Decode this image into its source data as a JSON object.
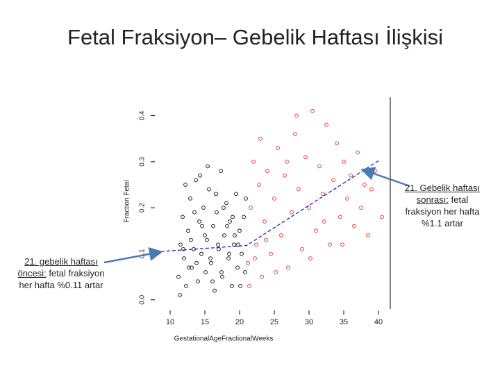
{
  "slide": {
    "title": "Fetal Fraksiyon– Gebelik Haftası İlişkisi"
  },
  "chart_data": {
    "type": "scatter",
    "x_label": "GestationalAgeFractionalWeeks",
    "y_label": "Fraction Fetal",
    "xlim": [
      8.7,
      41.7
    ],
    "ylim": [
      -0.02,
      0.44
    ],
    "xticks": [
      10,
      15,
      20,
      25,
      30,
      35,
      40
    ],
    "yticks": [
      {
        "value": 0,
        "label": "0.0"
      },
      0.1,
      0.2,
      0.3,
      0.4
    ],
    "series": [
      {
        "type": "scatter",
        "color": "#000000",
        "x": [
          11.2,
          11.5,
          11.8,
          12.0,
          12.3,
          12.6,
          12.9,
          13.1,
          13.4,
          13.7,
          14.0,
          14.2,
          14.5,
          14.8,
          15.1,
          15.3,
          15.6,
          15.9,
          16.2,
          16.4,
          16.7,
          17.0,
          17.3,
          17.5,
          17.8,
          18.1,
          18.4,
          18.6,
          18.9,
          19.2,
          19.5,
          19.7,
          20.0,
          20.3,
          20.6,
          20.8,
          11.4,
          12.2,
          13.0,
          13.8,
          14.6,
          15.4,
          16.1,
          16.9,
          17.7,
          18.5,
          19.3,
          20.1,
          20.9,
          11.9,
          12.7,
          13.5,
          14.3,
          15.0,
          15.8,
          16.6,
          17.4,
          18.2,
          19.0,
          19.8
        ],
        "values": [
          0.05,
          0.12,
          0.18,
          0.09,
          0.03,
          0.15,
          0.22,
          0.07,
          0.11,
          0.26,
          0.04,
          0.17,
          0.1,
          0.2,
          0.06,
          0.13,
          0.24,
          0.08,
          0.16,
          0.02,
          0.19,
          0.11,
          0.28,
          0.05,
          0.14,
          0.21,
          0.09,
          0.17,
          0.03,
          0.12,
          0.23,
          0.07,
          0.15,
          0.1,
          0.18,
          0.06,
          0.01,
          0.25,
          0.13,
          0.08,
          0.16,
          0.29,
          0.04,
          0.12,
          0.2,
          0.1,
          0.14,
          0.03,
          0.22,
          0.11,
          0.07,
          0.19,
          0.27,
          0.14,
          0.09,
          0.23,
          0.06,
          0.16,
          0.18,
          0.12
        ]
      },
      {
        "type": "scatter",
        "color": "#e8231b",
        "x": [
          21.2,
          21.6,
          22.0,
          22.4,
          22.8,
          23.2,
          23.6,
          24.0,
          24.5,
          25.0,
          25.5,
          26.0,
          26.5,
          27.0,
          27.5,
          28.0,
          28.5,
          29.0,
          29.5,
          30.0,
          30.5,
          31.0,
          31.5,
          32.0,
          32.5,
          33.0,
          33.5,
          34.0,
          34.5,
          35.0,
          35.5,
          36.0,
          36.5,
          37.0,
          37.5,
          38.0,
          38.5,
          39.0,
          39.5,
          40.5,
          21.4,
          22.2,
          23.0,
          23.8,
          25.2,
          26.8,
          28.2,
          30.2,
          32.2,
          34.8
        ],
        "values": [
          0.08,
          0.2,
          0.3,
          0.12,
          0.25,
          0.05,
          0.17,
          0.28,
          0.1,
          0.22,
          0.33,
          0.14,
          0.27,
          0.07,
          0.19,
          0.36,
          0.24,
          0.11,
          0.31,
          0.2,
          0.41,
          0.15,
          0.29,
          0.23,
          0.38,
          0.12,
          0.26,
          0.34,
          0.18,
          0.3,
          0.22,
          0.27,
          0.16,
          0.32,
          0.2,
          0.25,
          0.14,
          0.24,
          0.28,
          0.18,
          0.03,
          0.09,
          0.35,
          0.13,
          0.06,
          0.3,
          0.4,
          0.09,
          0.17,
          0.12
        ]
      },
      {
        "type": "line",
        "color": "#1f1fb4",
        "dashed": true,
        "x": [
          8.7,
          21,
          40
        ],
        "values": [
          0.105,
          0.118,
          0.302
        ]
      }
    ]
  },
  "annotations": [
    {
      "underlined": "21. gebelik haftası öncesi:",
      "text": "fetal fraksiyon her hafta %0.11 artar"
    },
    {
      "underlined": "21. Gebelik haftası sonrası:",
      "text": "fetal fraksiyon her hafta %1.1 artar"
    }
  ]
}
